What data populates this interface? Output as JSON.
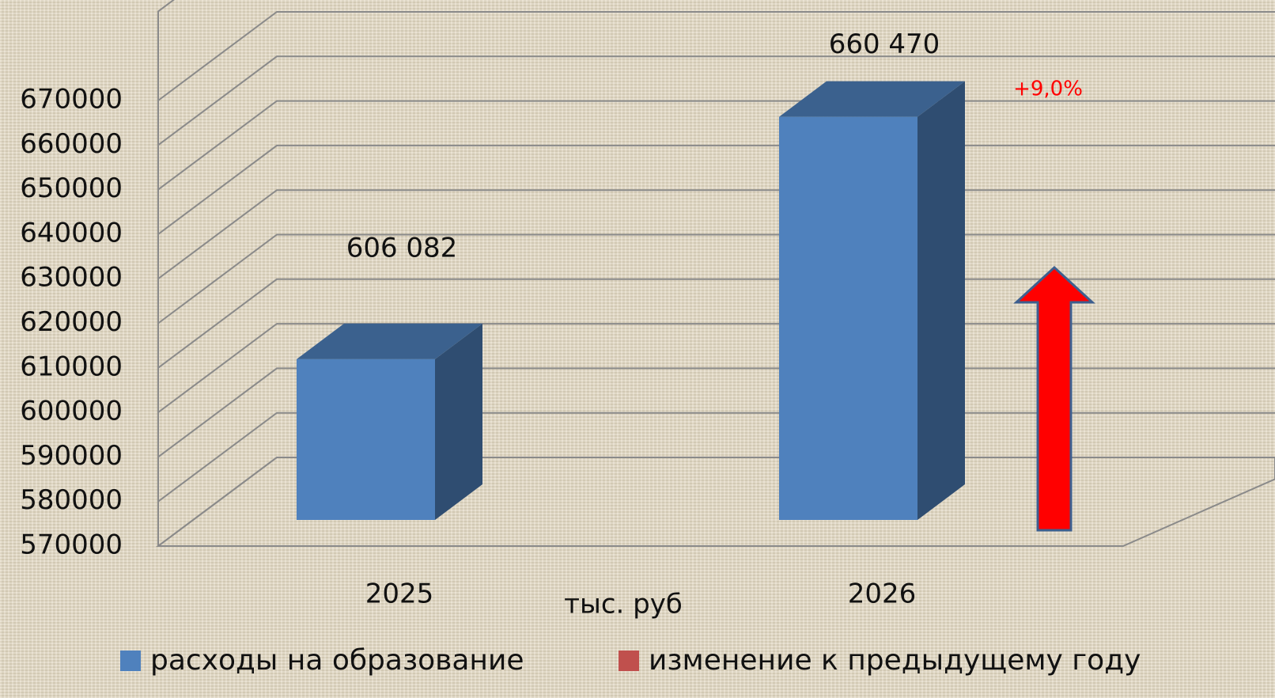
{
  "chart_data": {
    "type": "bar3d",
    "categories": [
      "2025",
      "2026"
    ],
    "series": [
      {
        "name": "расходы на образование",
        "color": "#4f81bd",
        "values": [
          606082,
          660470
        ],
        "value_labels": [
          "606 082",
          "660 470"
        ]
      },
      {
        "name": "изменение к предыдущему году",
        "color": "#c0504d",
        "arrow_color": "#ff0000",
        "values": [
          null,
          9.0
        ],
        "value_labels": [
          null,
          "+9,0%"
        ]
      }
    ],
    "x_label": "тыс. руб",
    "ylim": [
      570000,
      690000
    ],
    "yticks": [
      570000,
      580000,
      590000,
      600000,
      610000,
      620000,
      630000,
      640000,
      650000,
      660000,
      670000
    ],
    "grid": true,
    "legend": "bottom"
  }
}
